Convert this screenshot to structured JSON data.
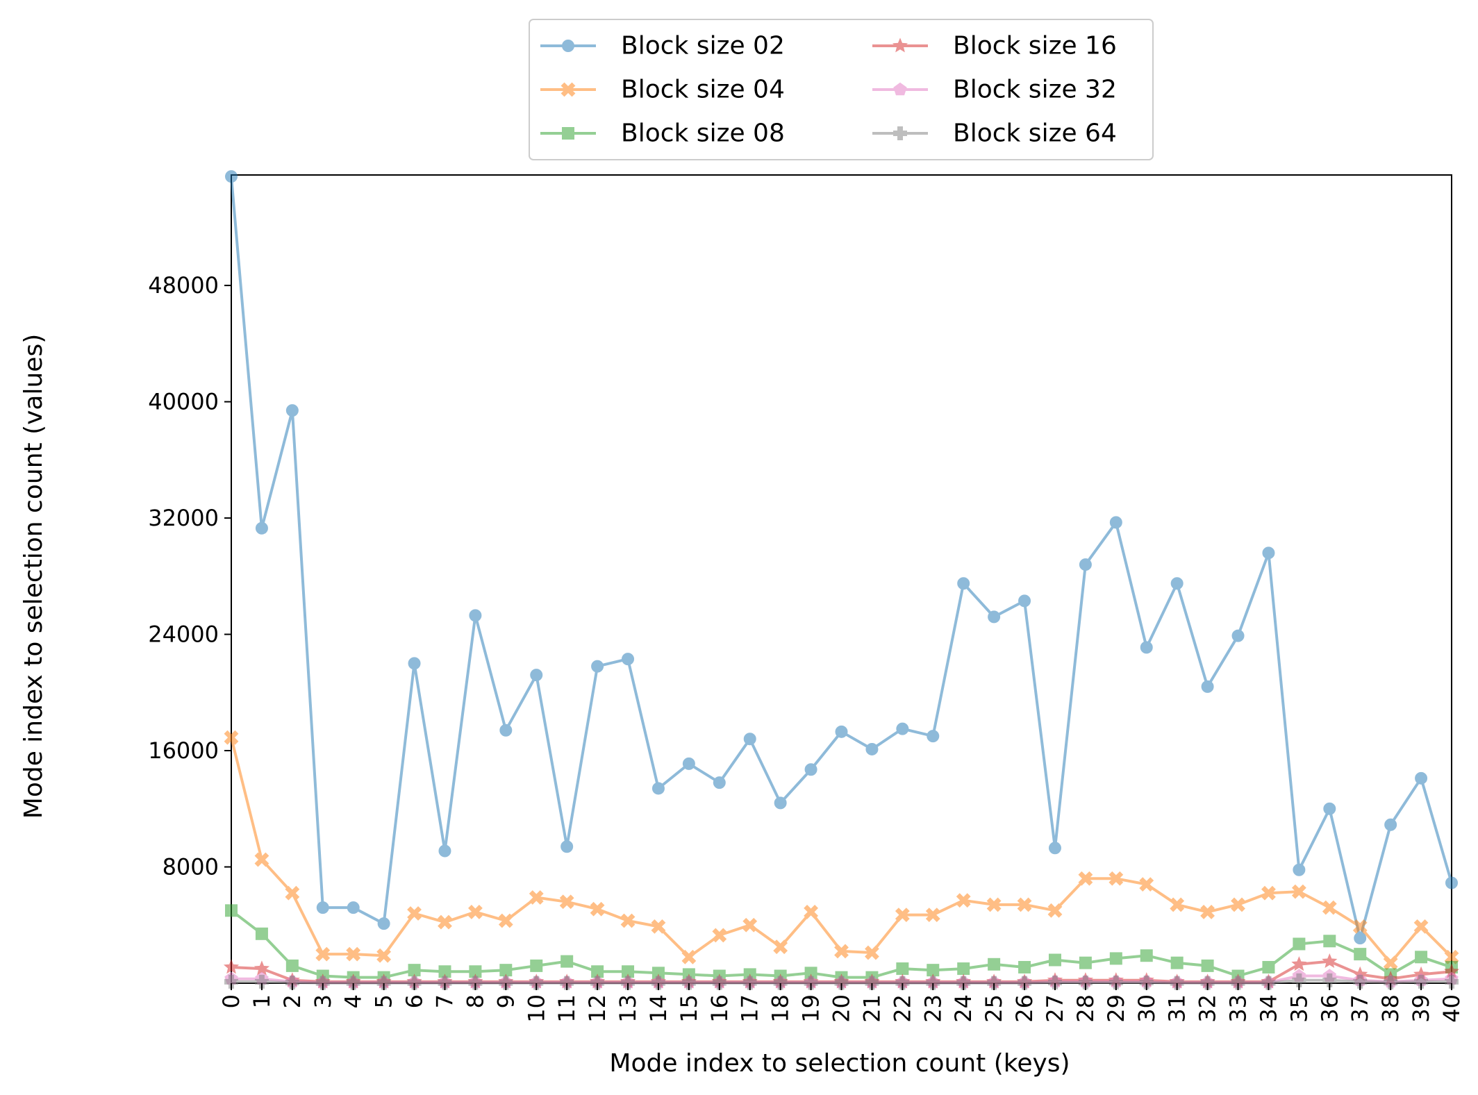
{
  "chart_data": {
    "type": "line",
    "title": "",
    "xlabel": "Mode index to selection count (keys)",
    "ylabel": "Mode index to selection count (values)",
    "x": [
      0,
      1,
      2,
      3,
      4,
      5,
      6,
      7,
      8,
      9,
      10,
      11,
      12,
      13,
      14,
      15,
      16,
      17,
      18,
      19,
      20,
      21,
      22,
      23,
      24,
      25,
      26,
      27,
      28,
      29,
      30,
      31,
      32,
      33,
      34,
      35,
      36,
      37,
      38,
      39,
      40
    ],
    "xlim": [
      0,
      40
    ],
    "ylim": [
      0,
      55600
    ],
    "yticks": [
      8000,
      16000,
      24000,
      32000,
      40000,
      48000
    ],
    "grid": false,
    "legend": {
      "placement": "top-center",
      "columns": 2
    },
    "series": [
      {
        "name": "Block size 02",
        "color": "#1f77b4",
        "marker": "circle",
        "values": [
          55500,
          31300,
          39400,
          5200,
          5200,
          4100,
          22000,
          9100,
          25300,
          17400,
          21200,
          9400,
          21800,
          22300,
          13400,
          15100,
          13800,
          16800,
          12400,
          14700,
          17300,
          16100,
          17500,
          17000,
          27500,
          25200,
          26300,
          9300,
          28800,
          31700,
          23100,
          27500,
          20400,
          23900,
          29600,
          7800,
          12000,
          3100,
          10900,
          14100,
          6900
        ]
      },
      {
        "name": "Block size 04",
        "color": "#ff7f0e",
        "marker": "x-filled",
        "values": [
          16900,
          8500,
          6200,
          2000,
          2000,
          1900,
          4800,
          4200,
          4900,
          4300,
          5900,
          5600,
          5100,
          4300,
          3900,
          1800,
          3300,
          4000,
          2500,
          4900,
          2200,
          2100,
          4700,
          4700,
          5700,
          5400,
          5400,
          5000,
          7200,
          7200,
          6800,
          5400,
          4900,
          5400,
          6200,
          6300,
          5200,
          3900,
          1400,
          3900,
          1800
        ]
      },
      {
        "name": "Block size 08",
        "color": "#2ca02c",
        "marker": "square",
        "values": [
          5000,
          3400,
          1200,
          500,
          400,
          400,
          900,
          800,
          800,
          900,
          1200,
          1500,
          800,
          800,
          700,
          600,
          500,
          600,
          500,
          700,
          400,
          400,
          1000,
          900,
          1000,
          1300,
          1100,
          1600,
          1400,
          1700,
          1900,
          1400,
          1200,
          500,
          1100,
          2700,
          2900,
          2000,
          600,
          1800,
          1100
        ]
      },
      {
        "name": "Block size 16",
        "color": "#d62728",
        "marker": "star",
        "values": [
          1100,
          1000,
          200,
          100,
          100,
          100,
          100,
          100,
          100,
          100,
          100,
          100,
          100,
          100,
          100,
          100,
          100,
          100,
          100,
          100,
          100,
          100,
          100,
          100,
          100,
          100,
          100,
          200,
          200,
          200,
          200,
          100,
          100,
          100,
          100,
          1300,
          1500,
          600,
          300,
          600,
          800
        ]
      },
      {
        "name": "Block size 32",
        "color": "#e377c2",
        "marker": "pentagon",
        "values": [
          300,
          300,
          100,
          50,
          50,
          50,
          50,
          50,
          50,
          50,
          50,
          50,
          50,
          50,
          50,
          50,
          50,
          50,
          50,
          50,
          50,
          50,
          50,
          50,
          50,
          50,
          50,
          100,
          100,
          100,
          100,
          50,
          50,
          50,
          50,
          500,
          500,
          200,
          100,
          200,
          300
        ]
      },
      {
        "name": "Block size 64",
        "color": "#7f7f7f",
        "marker": "plus",
        "values": [
          100,
          100,
          50,
          20,
          20,
          20,
          20,
          20,
          20,
          20,
          20,
          20,
          20,
          20,
          20,
          20,
          20,
          20,
          20,
          20,
          20,
          20,
          20,
          20,
          20,
          20,
          20,
          50,
          50,
          50,
          50,
          20,
          20,
          20,
          20,
          200,
          200,
          100,
          50,
          100,
          100
        ]
      }
    ]
  }
}
